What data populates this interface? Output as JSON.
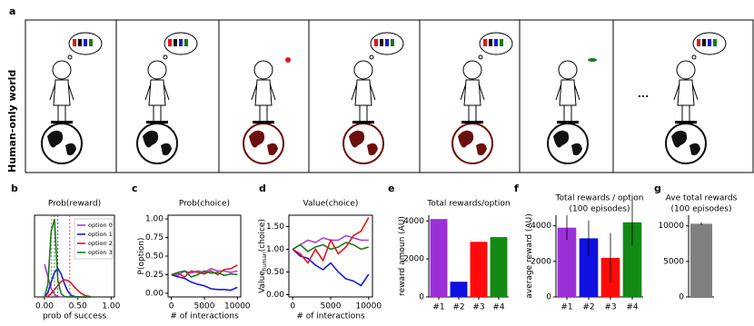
{
  "figure": {
    "panel_a": "a",
    "side_label": "Human-only world",
    "ellipsis": "..."
  },
  "chart_data": [
    {
      "panel": "b",
      "type": "line",
      "title": "Prob(reward)",
      "xlabel": "prob of success",
      "x": [
        0,
        0.05,
        0.1,
        0.15,
        0.2,
        0.25,
        0.3,
        0.35,
        0.4,
        0.45,
        0.5,
        0.55,
        0.6,
        0.65,
        0.7
      ],
      "xlim": [
        -0.15,
        1.05
      ],
      "ylim": [
        0,
        10
      ],
      "xticks": [
        {
          "value": 0,
          "label": "0.00"
        },
        {
          "value": 0.5,
          "label": "0.50"
        },
        {
          "value": 1,
          "label": "1.00"
        }
      ],
      "legend": "upper right",
      "series": [
        {
          "name": "option 0",
          "color": "#a53fd6",
          "mean": 0.1,
          "values": [
            4,
            2.5,
            1,
            0.3,
            0.05,
            0,
            0,
            0,
            0,
            0,
            0,
            0,
            0,
            0,
            0
          ]
        },
        {
          "name": "option 1",
          "color": "#1a1adb",
          "mean": 0.2,
          "values": [
            0,
            0.5,
            1.8,
            3,
            3.5,
            2.8,
            1.6,
            0.7,
            0.2,
            0.05,
            0,
            0,
            0,
            0,
            0
          ]
        },
        {
          "name": "option 2",
          "color": "#e8141a",
          "mean": 0.38,
          "values": [
            0,
            0.1,
            0.4,
            0.9,
            1.4,
            1.9,
            2.1,
            2,
            1.7,
            1.2,
            0.8,
            0.45,
            0.2,
            0.1,
            0.03
          ]
        },
        {
          "name": "option 3",
          "color": "#1a7a1a",
          "mean": 0.15,
          "values": [
            0,
            1.5,
            8,
            9.5,
            2,
            0.4,
            0.05,
            0,
            0,
            0,
            0,
            0,
            0,
            0,
            0
          ]
        }
      ]
    },
    {
      "panel": "c",
      "type": "line",
      "title": "Prob(choice)",
      "xlabel": "# of interactions",
      "ylabel": "P(option)",
      "x": [
        0,
        1000,
        2000,
        3000,
        4000,
        5000,
        6000,
        7000,
        8000,
        9000,
        10000
      ],
      "xlim": [
        -500,
        10500
      ],
      "ylim": [
        -0.05,
        1.05
      ],
      "xticks": [
        0,
        5000,
        10000
      ],
      "yticks": [
        {
          "value": 0,
          "label": "0.00"
        },
        {
          "value": 0.25,
          "label": "0.25"
        },
        {
          "value": 0.5,
          "label": "0.50"
        },
        {
          "value": 0.75,
          "label": "0.75"
        },
        {
          "value": 1,
          "label": "1.00"
        }
      ],
      "series": [
        {
          "color": "#a53fd6",
          "values": [
            0.25,
            0.24,
            0.3,
            0.27,
            0.3,
            0.28,
            0.33,
            0.3,
            0.3,
            0.28,
            0.3
          ]
        },
        {
          "color": "#1a1adb",
          "values": [
            0.25,
            0.22,
            0.2,
            0.15,
            0.12,
            0.1,
            0.06,
            0.05,
            0.05,
            0.04,
            0.08
          ]
        },
        {
          "color": "#e8141a",
          "values": [
            0.25,
            0.27,
            0.22,
            0.3,
            0.28,
            0.26,
            0.3,
            0.25,
            0.32,
            0.33,
            0.38
          ]
        },
        {
          "color": "#1a7a1a",
          "values": [
            0.25,
            0.28,
            0.3,
            0.22,
            0.25,
            0.3,
            0.27,
            0.28,
            0.24,
            0.26,
            0.25
          ]
        }
      ]
    },
    {
      "panel": "d",
      "type": "line",
      "title": "Value(choice)",
      "xlabel": "# of interactions",
      "ylabel": "Value",
      "ylabel_sub": "human",
      "ylabel_end": "(choice)",
      "x": [
        0,
        1000,
        2000,
        3000,
        4000,
        5000,
        6000,
        7000,
        8000,
        9000,
        10000
      ],
      "xlim": [
        -500,
        10500
      ],
      "ylim": [
        -0.05,
        1.75
      ],
      "xticks": [
        0,
        5000,
        10000
      ],
      "yticks": [
        {
          "value": 0,
          "label": "0.00"
        },
        {
          "value": 0.5,
          "label": "0.50"
        },
        {
          "value": 1,
          "label": "1.00"
        },
        {
          "value": 1.5,
          "label": "1.50"
        }
      ],
      "series": [
        {
          "color": "#a53fd6",
          "values": [
            1.0,
            1.1,
            1.2,
            1.15,
            1.25,
            1.2,
            1.2,
            1.3,
            1.25,
            1.2,
            1.2
          ]
        },
        {
          "color": "#1a1adb",
          "values": [
            1.0,
            0.85,
            0.8,
            0.65,
            0.55,
            0.7,
            0.5,
            0.35,
            0.3,
            0.2,
            0.45
          ]
        },
        {
          "color": "#e8141a",
          "values": [
            1.0,
            0.9,
            0.7,
            1.0,
            0.75,
            1.2,
            0.9,
            1.05,
            1.3,
            1.4,
            1.7
          ]
        },
        {
          "color": "#1a7a1a",
          "values": [
            1.0,
            1.1,
            0.95,
            1.05,
            1.1,
            1.0,
            1.05,
            1.15,
            1.1,
            1.0,
            1.05
          ]
        }
      ]
    },
    {
      "panel": "e",
      "type": "bar",
      "title": "Total rewards/option",
      "ylabel": "reward amoun (AU)",
      "categories": [
        "#1",
        "#2",
        "#3",
        "#4"
      ],
      "colors": [
        "#9b30d9",
        "#1010e0",
        "#ff0a0a",
        "#138a13"
      ],
      "values": [
        4100,
        800,
        2900,
        3150
      ],
      "ylim": [
        0,
        4300
      ],
      "yticks": [
        0,
        2000,
        4000
      ]
    },
    {
      "panel": "f",
      "type": "bar",
      "title": [
        "Total rewards / option",
        "(100 episodes)"
      ],
      "ylabel": "average reward (AU)",
      "categories": [
        "#1",
        "#2",
        "#3",
        "#4"
      ],
      "colors": [
        "#9b30d9",
        "#1010e0",
        "#ff0a0a",
        "#138a13"
      ],
      "values": [
        3900,
        3300,
        2200,
        4200
      ],
      "errors": [
        700,
        1000,
        1400,
        1300
      ],
      "ylim": [
        0,
        4600
      ],
      "yticks": [
        0,
        2000,
        4000
      ]
    },
    {
      "panel": "g",
      "type": "bar",
      "title": [
        "Ave total rewards",
        "(100 episodes)"
      ],
      "categories": [
        null
      ],
      "colors": [
        "#808080"
      ],
      "values": [
        10300
      ],
      "errors": [
        200
      ],
      "ylim": [
        0,
        11500
      ],
      "yticks": [
        0,
        5000,
        10000
      ]
    }
  ]
}
